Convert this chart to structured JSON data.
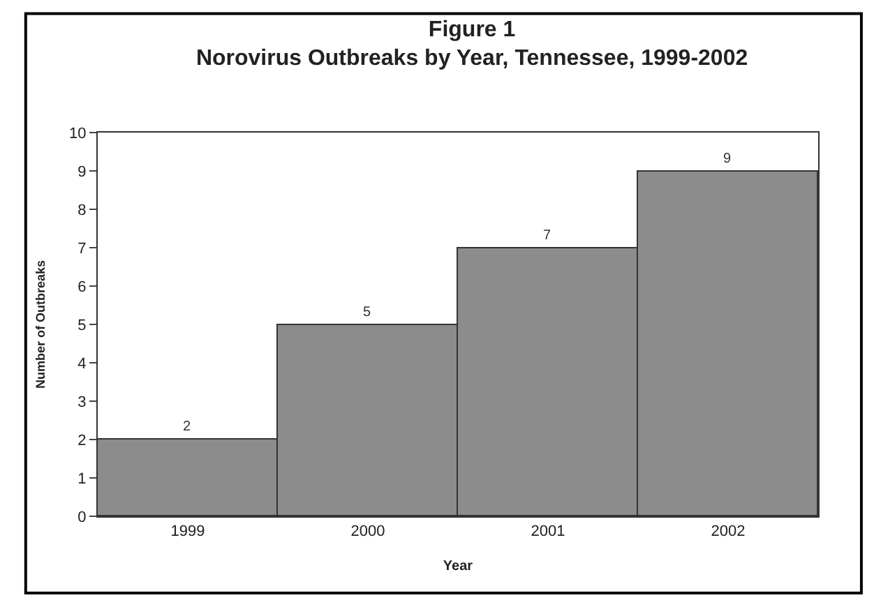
{
  "chart_data": {
    "type": "bar",
    "title": "Figure 1",
    "subtitle": "Norovirus Outbreaks by Year, Tennessee, 1999-2002",
    "xlabel": "Year",
    "ylabel": "Number of Outbreaks",
    "categories": [
      "1999",
      "2000",
      "2001",
      "2002"
    ],
    "values": [
      2,
      5,
      7,
      9
    ],
    "color": "#8c8c8c",
    "ylim": [
      0,
      10
    ],
    "yticks": [
      0,
      1,
      2,
      3,
      4,
      5,
      6,
      7,
      8,
      9,
      10
    ],
    "data_labels": true,
    "legend": false
  }
}
